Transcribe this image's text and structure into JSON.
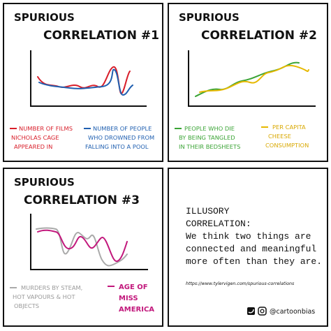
{
  "panels": [
    {
      "title_lines": [
        "SPURIOUS",
        "CORRELATION #1"
      ],
      "legend": [
        {
          "lines": [
            "NUMBER OF FILMS",
            "NICHOLAS CAGE",
            "APPEARED IN"
          ]
        },
        {
          "lines": [
            "NUMBER OF PEOPLE",
            "WHO DROWNED FROM",
            "FALLING INTO A POOL"
          ]
        }
      ]
    },
    {
      "title_lines": [
        "SPURIOUS",
        "CORRELATION #2"
      ],
      "legend": [
        {
          "lines": [
            "PEOPLE WHO DIE",
            "BY BEING TANGLED",
            "IN THEIR BEDSHEETS"
          ]
        },
        {
          "lines": [
            "PER CAPITA",
            "CHEESE",
            "CONSUMPTION"
          ]
        }
      ]
    },
    {
      "title_lines": [
        "SPURIOUS",
        "CORRELATION #3"
      ],
      "legend": [
        {
          "lines": [
            "MURDERS BY STEAM,",
            "HOT VAPOURS & HOT",
            "OBJECTS"
          ]
        },
        {
          "lines": [
            "AGE OF",
            "MISS",
            "AMERICA"
          ]
        }
      ]
    }
  ],
  "note": {
    "heading_lines": [
      "ILLUSORY",
      "CORRELATION:"
    ],
    "body_lines": [
      "We think two things are",
      "connected and meaningful",
      "more often than they are."
    ],
    "link": "https://www.tylervigen.com/spurious-correlations",
    "handle": "@cartoonbias"
  }
}
